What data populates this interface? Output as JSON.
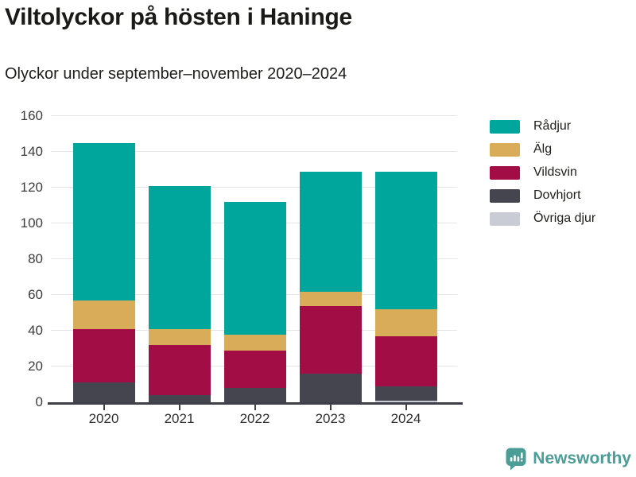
{
  "title": "Viltolyckor på hösten i Haninge",
  "subtitle": "Olyckor under september–november 2020–2024",
  "brand": {
    "name": "Newsworthy",
    "color": "#4a9e96",
    "icon": "newsworthy-logo-icon"
  },
  "colors": {
    "axis_line": "#3f3f49",
    "gridline": "#e4e5e8",
    "title_text": "#1a1a18",
    "tick_label_text": "#3c3c3c"
  },
  "chart_data": {
    "type": "bar",
    "stacked": true,
    "title": "Viltolyckor på hösten i Haninge",
    "subtitle": "Olyckor under september–november 2020–2024",
    "xlabel": "",
    "ylabel": "",
    "categories": [
      "2020",
      "2021",
      "2022",
      "2023",
      "2024"
    ],
    "series": [
      {
        "name": "Rådjur",
        "color": "#00a59b",
        "values": [
          88,
          80,
          74,
          67,
          77
        ]
      },
      {
        "name": "Älg",
        "color": "#d9ac5a",
        "values": [
          16,
          9,
          9,
          8,
          15
        ]
      },
      {
        "name": "Vildsvin",
        "color": "#a10d44",
        "values": [
          30,
          28,
          21,
          38,
          28
        ]
      },
      {
        "name": "Dovhjort",
        "color": "#45454f",
        "values": [
          11,
          4,
          8,
          16,
          8
        ]
      },
      {
        "name": "Övriga djur",
        "color": "#c9ccd4",
        "values": [
          0,
          0,
          0,
          0,
          1
        ]
      }
    ],
    "stack_order_bottom_to_top": [
      "Övriga djur",
      "Dovhjort",
      "Vildsvin",
      "Älg",
      "Rådjur"
    ],
    "ylim": [
      0,
      160
    ],
    "yticks": [
      0,
      20,
      40,
      60,
      80,
      100,
      120,
      140,
      160
    ],
    "grid": true,
    "legend_position": "right"
  }
}
